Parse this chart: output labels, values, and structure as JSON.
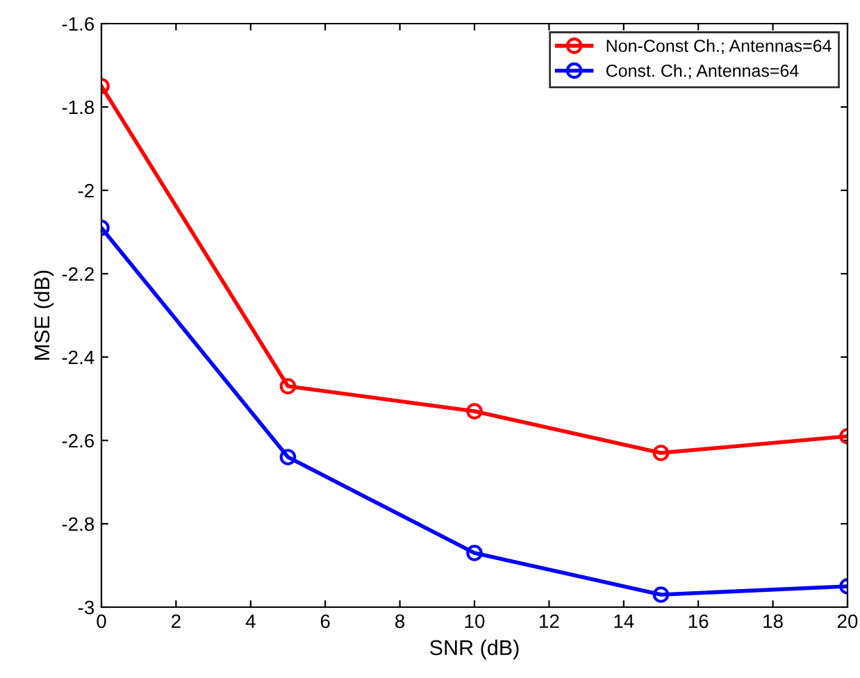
{
  "chart_data": {
    "type": "line",
    "xlabel": "SNR (dB)",
    "ylabel": "MSE (dB)",
    "x": [
      0,
      5,
      10,
      15,
      20
    ],
    "series": [
      {
        "name": "Non-Const Ch.; Antennas=64",
        "color": "#ff0000",
        "values": [
          -1.75,
          -2.47,
          -2.53,
          -2.63,
          -2.59
        ]
      },
      {
        "name": "Const. Ch.; Antennas=64",
        "color": "#0000ff",
        "values": [
          -2.09,
          -2.64,
          -2.87,
          -2.97,
          -2.95
        ]
      }
    ],
    "xlim": [
      0,
      20
    ],
    "xticks": [
      0,
      2,
      4,
      6,
      8,
      10,
      12,
      14,
      16,
      18,
      20
    ],
    "ylim": [
      -3,
      -1.6
    ],
    "yticks": [
      {
        "value": -3,
        "label": "-3"
      },
      {
        "value": -2.8,
        "label": "-2.8"
      },
      {
        "value": -2.6,
        "label": "-2.6"
      },
      {
        "value": -2.4,
        "label": "-2.4"
      },
      {
        "value": -2.2,
        "label": "-2.2"
      },
      {
        "value": -2,
        "label": "-2"
      },
      {
        "value": -1.8,
        "label": "-1.8"
      },
      {
        "value": -1.6,
        "label": "-1.6"
      }
    ],
    "grid": false,
    "legend": "top right",
    "marker": "circle",
    "line_style": "solid"
  }
}
